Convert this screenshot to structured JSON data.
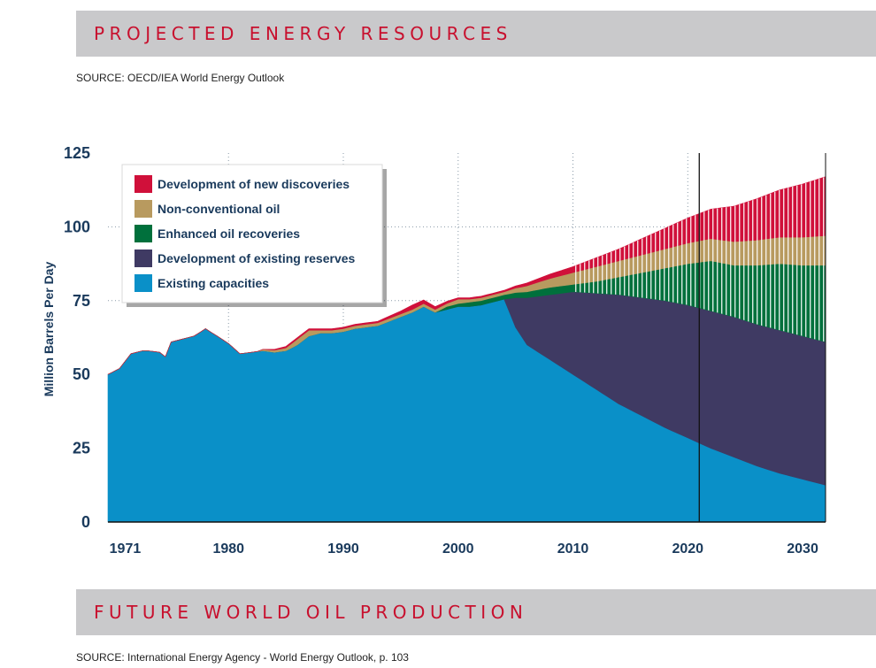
{
  "header": {
    "title": "PROJECTED ENERGY RESOURCES",
    "source": "SOURCE: OECD/IEA World Energy Outlook"
  },
  "footer": {
    "title": "FUTURE WORLD OIL PRODUCTION",
    "source": "SOURCE: International Energy Agency - World Energy Outlook, p. 103"
  },
  "colors": {
    "banner_bg": "#c9c9cb",
    "banner_text": "#c8102e",
    "axis_text": "#1a3a5c"
  },
  "chart_data": {
    "type": "area",
    "stacked": true,
    "ylabel": "Million Barrels Per Day",
    "xlabel": "",
    "ylim": [
      0,
      125
    ],
    "y_ticks": [
      0,
      25,
      50,
      75,
      100,
      125
    ],
    "xlim": [
      1969.5,
      2032
    ],
    "x_ticks": [
      1971,
      1980,
      1990,
      2000,
      2010,
      2020,
      2030
    ],
    "x_gridlines": [
      1980,
      1990,
      2000,
      2010,
      2020
    ],
    "y_gridlines": [
      25,
      50,
      75,
      100
    ],
    "grid": true,
    "grid_style": "dotted",
    "reference_line_x": 2021,
    "hatched_from_x": 2010,
    "legend_position": "top-left",
    "series": [
      {
        "name": "Existing capacities",
        "color": "#0a90c8",
        "x": [
          1969.5,
          1970.5,
          1971.5,
          1972.5,
          1973,
          1974,
          1974.5,
          1975,
          1976,
          1977,
          1978,
          1979,
          1980,
          1981,
          1982,
          1983,
          1984,
          1985,
          1986,
          1987,
          1988,
          1989,
          1990,
          1991,
          1992,
          1993,
          1994,
          1995,
          1996,
          1997,
          1998,
          1999,
          2000,
          2001,
          2002,
          2003,
          2004,
          2005,
          2006,
          2008,
          2010,
          2012,
          2014,
          2016,
          2018,
          2020,
          2022,
          2024,
          2026,
          2028,
          2030,
          2032
        ],
        "values": [
          50,
          52,
          57,
          58,
          58,
          57.5,
          56,
          61,
          62,
          63,
          65.5,
          63,
          60.5,
          57,
          57.5,
          58,
          57.5,
          58,
          60,
          63,
          64,
          64,
          64.5,
          65.5,
          66,
          66.5,
          68,
          69.5,
          71,
          73,
          71,
          72,
          73,
          73,
          73.5,
          74.5,
          75.5,
          66,
          60,
          55,
          50,
          45,
          40,
          36,
          32,
          28.5,
          25,
          22,
          19,
          16.5,
          14.5,
          12.5
        ]
      },
      {
        "name": "Development of existing reserves",
        "color": "#3f3a63",
        "x": [
          2004,
          2005,
          2006,
          2008,
          2010,
          2012,
          2014,
          2016,
          2018,
          2020,
          2022,
          2024,
          2026,
          2028,
          2030,
          2032
        ],
        "values": [
          0,
          10,
          16,
          22,
          28,
          32.5,
          37,
          40,
          43,
          45,
          46.5,
          47.5,
          48,
          48.5,
          48.5,
          48.5
        ]
      },
      {
        "name": "Enhanced oil recoveries",
        "color": "#00703c",
        "x": [
          1998,
          1999,
          2000,
          2001,
          2002,
          2003,
          2004,
          2006,
          2008,
          2010,
          2012,
          2014,
          2016,
          2018,
          2020,
          2022,
          2024,
          2026,
          2028,
          2030,
          2032
        ],
        "values": [
          0,
          1,
          1,
          1.5,
          1.5,
          1.5,
          1.5,
          2,
          2.5,
          2.5,
          4,
          6,
          8.5,
          11,
          14,
          17,
          17.5,
          20,
          22.5,
          24,
          26
        ]
      },
      {
        "name": "Non-conventional oil",
        "color": "#b89a5f",
        "x": [
          1983,
          1985,
          1986,
          1987,
          1988,
          1989,
          1990,
          1992,
          1994,
          1996,
          1997,
          1998,
          1999,
          2000,
          2001,
          2002,
          2004,
          2006,
          2008,
          2010,
          2012,
          2014,
          2016,
          2018,
          2020,
          2022,
          2024,
          2026,
          2028,
          2030,
          2032
        ],
        "values": [
          0.5,
          1,
          2,
          2,
          1,
          1,
          1,
          1,
          1,
          1,
          1,
          1,
          1,
          1.5,
          1,
          1,
          1,
          2,
          3,
          4,
          5,
          5.5,
          6,
          6.5,
          7,
          7.5,
          8,
          8.5,
          9,
          9.5,
          10
        ]
      },
      {
        "name": "Development of new discoveries",
        "color": "#d0103a",
        "x": [
          1983,
          1985,
          1990,
          1993,
          1995,
          1996,
          1998,
          2000,
          2002,
          2004,
          2006,
          2008,
          2010,
          2012,
          2014,
          2016,
          2018,
          2020,
          2022,
          2024,
          2026,
          2028,
          2030,
          2032
        ],
        "values": [
          0,
          0.5,
          0.5,
          0.5,
          1,
          1.5,
          1,
          0.5,
          0.5,
          0.5,
          1,
          1.5,
          2,
          3,
          4,
          5.5,
          7,
          8.5,
          10,
          12,
          14,
          16,
          18,
          20
        ]
      }
    ]
  }
}
